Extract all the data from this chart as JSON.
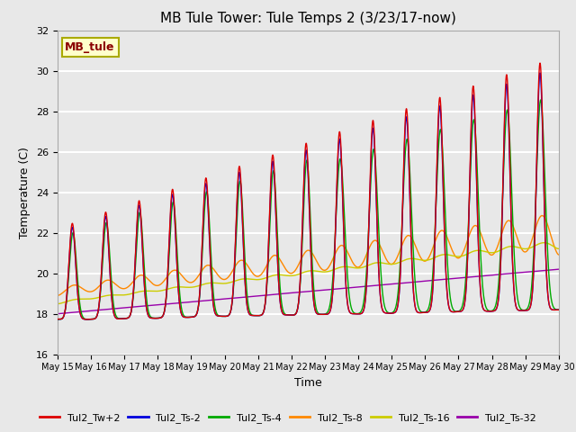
{
  "title": "MB Tule Tower: Tule Temps 2 (3/23/17-now)",
  "xlabel": "Time",
  "ylabel": "Temperature (C)",
  "ylim": [
    16,
    32
  ],
  "yticks": [
    16,
    18,
    20,
    22,
    24,
    26,
    28,
    30,
    32
  ],
  "bg_color": "#e8e8e8",
  "grid_color": "#ffffff",
  "legend_label": "MB_tule",
  "series_colors": {
    "Tul2_Tw+2": "#dd0000",
    "Tul2_Ts-2": "#0000dd",
    "Tul2_Ts-4": "#00aa00",
    "Tul2_Ts-8": "#ff8800",
    "Tul2_Ts-16": "#cccc00",
    "Tul2_Ts-32": "#9900aa"
  },
  "xtick_labels": [
    "May 15",
    "May 16",
    "May 17",
    "May 18",
    "May 19",
    "May 20",
    "May 21",
    "May 22",
    "May 23",
    "May 24",
    "May 25",
    "May 26",
    "May 27",
    "May 28",
    "May 29",
    "May 30"
  ],
  "xtick_positions": [
    15,
    16,
    17,
    18,
    19,
    20,
    21,
    22,
    23,
    24,
    25,
    26,
    27,
    28,
    29,
    30
  ]
}
